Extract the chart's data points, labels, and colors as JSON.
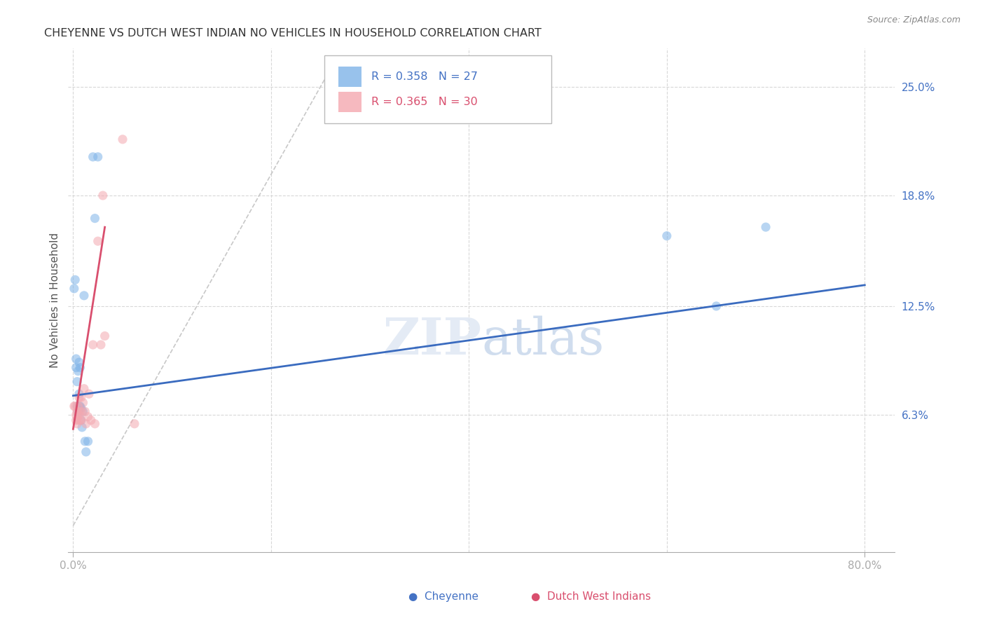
{
  "title": "CHEYENNE VS DUTCH WEST INDIAN NO VEHICLES IN HOUSEHOLD CORRELATION CHART",
  "source": "Source: ZipAtlas.com",
  "ylabel": "No Vehicles in Household",
  "ytick_labels": [
    "25.0%",
    "18.8%",
    "12.5%",
    "6.3%"
  ],
  "ytick_values": [
    0.25,
    0.188,
    0.125,
    0.063
  ],
  "xtick_labels": [
    "0.0%",
    "80.0%"
  ],
  "xtick_positions": [
    0.0,
    0.8
  ],
  "xlim": [
    -0.005,
    0.83
  ],
  "ylim": [
    -0.015,
    0.272
  ],
  "background_color": "#ffffff",
  "cheyenne_color": "#7eb3e8",
  "dutch_color": "#f4a8b0",
  "cheyenne_line_color": "#3a6bbf",
  "dutch_line_color": "#d94f6e",
  "diagonal_color": "#c8c8c8",
  "grid_color": "#d8d8d8",
  "watermark": "ZIPatlas",
  "legend_r1": "R = 0.358",
  "legend_n1": "N = 27",
  "legend_r2": "R = 0.365",
  "legend_n2": "N = 30",
  "cheyenne_x": [
    0.001,
    0.002,
    0.003,
    0.003,
    0.004,
    0.004,
    0.005,
    0.005,
    0.006,
    0.006,
    0.006,
    0.007,
    0.007,
    0.008,
    0.008,
    0.009,
    0.01,
    0.011,
    0.012,
    0.013,
    0.015,
    0.02,
    0.022,
    0.025,
    0.6,
    0.65,
    0.7
  ],
  "cheyenne_y": [
    0.135,
    0.14,
    0.09,
    0.095,
    0.082,
    0.068,
    0.088,
    0.065,
    0.093,
    0.068,
    0.075,
    0.09,
    0.068,
    0.067,
    0.06,
    0.056,
    0.065,
    0.131,
    0.048,
    0.042,
    0.048,
    0.21,
    0.175,
    0.21,
    0.165,
    0.125,
    0.17
  ],
  "dutch_x": [
    0.001,
    0.002,
    0.003,
    0.003,
    0.004,
    0.004,
    0.005,
    0.005,
    0.006,
    0.006,
    0.007,
    0.007,
    0.008,
    0.008,
    0.009,
    0.01,
    0.011,
    0.012,
    0.013,
    0.015,
    0.016,
    0.018,
    0.02,
    0.022,
    0.025,
    0.028,
    0.03,
    0.032,
    0.05,
    0.062
  ],
  "dutch_y": [
    0.068,
    0.068,
    0.063,
    0.06,
    0.065,
    0.058,
    0.068,
    0.06,
    0.073,
    0.063,
    0.065,
    0.06,
    0.073,
    0.06,
    0.065,
    0.07,
    0.078,
    0.065,
    0.058,
    0.062,
    0.075,
    0.06,
    0.103,
    0.058,
    0.162,
    0.103,
    0.188,
    0.108,
    0.22,
    0.058
  ],
  "cheyenne_trend": [
    0.0,
    0.8,
    0.074,
    0.137
  ],
  "dutch_trend": [
    0.0,
    0.032,
    0.055,
    0.17
  ],
  "diagonal": [
    0.0,
    0.265,
    0.0,
    0.265
  ],
  "marker_size": 90,
  "alpha": 0.55
}
